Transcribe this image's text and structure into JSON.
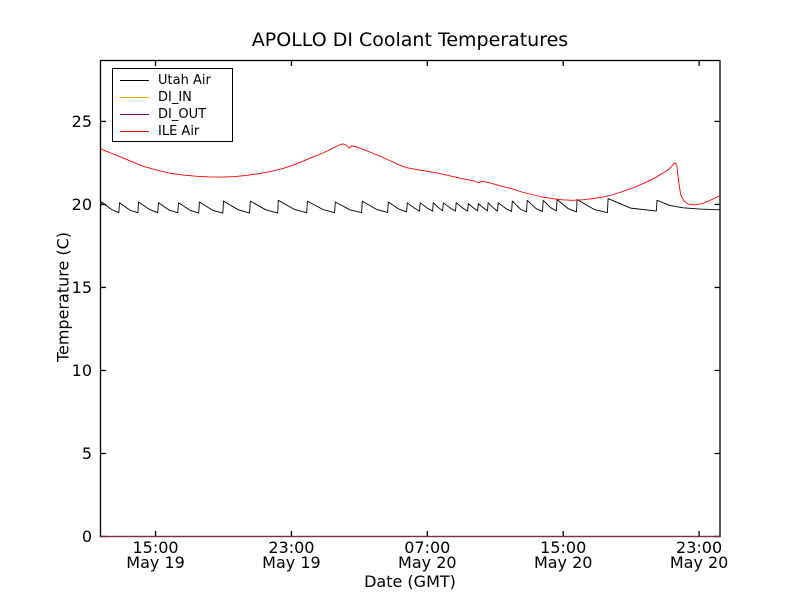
{
  "figure": {
    "background": "#ffffff",
    "frame_color": "#000000"
  },
  "chart_data": {
    "type": "line",
    "title": "APOLLO DI Coolant Temperatures",
    "xlabel": "Date (GMT)",
    "ylabel": "Temperature (C)",
    "grid": false,
    "legend_position": "upper left",
    "x_unit": "hours along trace (labels show time/date GMT)",
    "xlim": [
      0,
      36.47
    ],
    "ylim": [
      0,
      28.67
    ],
    "yticks": [
      0,
      5,
      10,
      15,
      20,
      25
    ],
    "xticks": [
      {
        "hour": 3.24,
        "time": "15:00",
        "date": "May 19"
      },
      {
        "hour": 11.24,
        "time": "23:00",
        "date": "May 19"
      },
      {
        "hour": 19.24,
        "time": "07:00",
        "date": "May 20"
      },
      {
        "hour": 27.24,
        "time": "15:00",
        "date": "May 20"
      },
      {
        "hour": 35.24,
        "time": "23:00",
        "date": "May 20"
      }
    ],
    "series": [
      {
        "name": "Utah Air",
        "color": "#000000",
        "points": [
          [
            0,
            19.85
          ],
          [
            0.06,
            20.15
          ],
          [
            0.64,
            19.7
          ],
          [
            1.08,
            19.5
          ],
          [
            1.12,
            20.1
          ],
          [
            1.74,
            19.65
          ],
          [
            2.2,
            19.5
          ],
          [
            2.24,
            20.15
          ],
          [
            2.88,
            19.7
          ],
          [
            3.37,
            19.5
          ],
          [
            3.41,
            20.1
          ],
          [
            4.06,
            19.65
          ],
          [
            4.55,
            19.5
          ],
          [
            4.59,
            20.1
          ],
          [
            5.27,
            19.65
          ],
          [
            5.78,
            19.48
          ],
          [
            5.82,
            20.15
          ],
          [
            6.6,
            19.65
          ],
          [
            7.2,
            19.48
          ],
          [
            7.24,
            20.2
          ],
          [
            8.11,
            19.68
          ],
          [
            8.78,
            19.48
          ],
          [
            8.82,
            20.2
          ],
          [
            9.73,
            19.68
          ],
          [
            10.43,
            19.48
          ],
          [
            10.47,
            20.25
          ],
          [
            11.41,
            19.7
          ],
          [
            12.14,
            19.5
          ],
          [
            12.18,
            20.2
          ],
          [
            13.08,
            19.7
          ],
          [
            13.78,
            19.5
          ],
          [
            13.82,
            20.15
          ],
          [
            14.69,
            19.68
          ],
          [
            15.37,
            19.5
          ],
          [
            15.41,
            20.2
          ],
          [
            16.25,
            19.7
          ],
          [
            16.9,
            19.52
          ],
          [
            16.94,
            20.15
          ],
          [
            17.56,
            19.72
          ],
          [
            18.02,
            19.55
          ],
          [
            18.06,
            20.1
          ],
          [
            18.48,
            19.78
          ],
          [
            18.78,
            19.6
          ],
          [
            18.82,
            20.1
          ],
          [
            19.24,
            19.78
          ],
          [
            19.55,
            19.6
          ],
          [
            19.59,
            20.1
          ],
          [
            19.91,
            19.8
          ],
          [
            20.14,
            19.62
          ],
          [
            20.18,
            20.1
          ],
          [
            20.6,
            19.78
          ],
          [
            20.9,
            19.6
          ],
          [
            20.94,
            20.1
          ],
          [
            21.33,
            19.78
          ],
          [
            21.61,
            19.6
          ],
          [
            21.65,
            20.05
          ],
          [
            21.97,
            19.78
          ],
          [
            22.2,
            19.62
          ],
          [
            22.24,
            20.05
          ],
          [
            22.56,
            19.78
          ],
          [
            22.78,
            19.62
          ],
          [
            22.82,
            20.1
          ],
          [
            23.14,
            19.78
          ],
          [
            23.37,
            19.6
          ],
          [
            23.41,
            20.1
          ],
          [
            23.87,
            19.75
          ],
          [
            24.2,
            19.58
          ],
          [
            24.24,
            20.2
          ],
          [
            24.72,
            19.72
          ],
          [
            25.08,
            19.55
          ],
          [
            25.12,
            20.25
          ],
          [
            25.64,
            19.75
          ],
          [
            26.02,
            19.58
          ],
          [
            26.06,
            20.25
          ],
          [
            26.51,
            19.8
          ],
          [
            26.84,
            19.62
          ],
          [
            26.88,
            20.3
          ],
          [
            27.53,
            19.75
          ],
          [
            28.02,
            19.55
          ],
          [
            28.06,
            20.3
          ],
          [
            29.06,
            19.7
          ],
          [
            29.84,
            19.5
          ],
          [
            29.88,
            20.35
          ],
          [
            31.2,
            19.78
          ],
          [
            32.72,
            19.6
          ],
          [
            32.76,
            20.25
          ],
          [
            33.5,
            19.95
          ],
          [
            34.3,
            19.8
          ],
          [
            35.3,
            19.72
          ],
          [
            36.47,
            19.68
          ]
        ]
      },
      {
        "name": "DI_IN",
        "color": "#ffa500",
        "points": [
          [
            0,
            0
          ],
          [
            36.47,
            0
          ]
        ]
      },
      {
        "name": "DI_OUT",
        "color": "#800080",
        "points": [
          [
            0,
            0
          ],
          [
            36.47,
            0
          ]
        ]
      },
      {
        "name": "ILE Air",
        "color": "#ff0000",
        "points": [
          [
            0,
            23.35
          ],
          [
            0.6,
            23.1
          ],
          [
            1.2,
            22.85
          ],
          [
            1.8,
            22.6
          ],
          [
            2.5,
            22.3
          ],
          [
            3.2,
            22.1
          ],
          [
            4.0,
            21.9
          ],
          [
            4.8,
            21.78
          ],
          [
            5.6,
            21.7
          ],
          [
            6.4,
            21.66
          ],
          [
            7.2,
            21.65
          ],
          [
            7.9,
            21.68
          ],
          [
            8.6,
            21.75
          ],
          [
            9.3,
            21.85
          ],
          [
            10.0,
            21.98
          ],
          [
            10.7,
            22.15
          ],
          [
            11.3,
            22.35
          ],
          [
            11.9,
            22.6
          ],
          [
            12.5,
            22.85
          ],
          [
            13.1,
            23.1
          ],
          [
            13.6,
            23.35
          ],
          [
            14.0,
            23.55
          ],
          [
            14.25,
            23.65
          ],
          [
            14.45,
            23.58
          ],
          [
            14.62,
            23.4
          ],
          [
            14.8,
            23.53
          ],
          [
            15.1,
            23.46
          ],
          [
            15.5,
            23.3
          ],
          [
            16.0,
            23.1
          ],
          [
            16.5,
            22.88
          ],
          [
            17.0,
            22.65
          ],
          [
            17.5,
            22.42
          ],
          [
            18.0,
            22.22
          ],
          [
            18.6,
            22.1
          ],
          [
            19.2,
            22.0
          ],
          [
            19.9,
            21.88
          ],
          [
            20.6,
            21.72
          ],
          [
            21.3,
            21.55
          ],
          [
            22.0,
            21.42
          ],
          [
            22.25,
            21.3
          ],
          [
            22.45,
            21.4
          ],
          [
            23.0,
            21.28
          ],
          [
            23.6,
            21.1
          ],
          [
            24.2,
            20.95
          ],
          [
            24.8,
            20.75
          ],
          [
            25.4,
            20.6
          ],
          [
            26.0,
            20.45
          ],
          [
            26.6,
            20.35
          ],
          [
            27.2,
            20.28
          ],
          [
            27.8,
            20.25
          ],
          [
            28.4,
            20.28
          ],
          [
            29.0,
            20.35
          ],
          [
            29.6,
            20.45
          ],
          [
            30.2,
            20.6
          ],
          [
            30.8,
            20.8
          ],
          [
            31.4,
            21.02
          ],
          [
            32.0,
            21.28
          ],
          [
            32.6,
            21.58
          ],
          [
            33.1,
            21.88
          ],
          [
            33.5,
            22.15
          ],
          [
            33.8,
            22.5
          ],
          [
            33.92,
            22.42
          ],
          [
            34.02,
            21.5
          ],
          [
            34.15,
            20.6
          ],
          [
            34.35,
            20.2
          ],
          [
            34.6,
            20.02
          ],
          [
            34.9,
            19.97
          ],
          [
            35.2,
            20.0
          ],
          [
            35.5,
            20.08
          ],
          [
            35.8,
            20.2
          ],
          [
            36.1,
            20.35
          ],
          [
            36.3,
            20.45
          ],
          [
            36.47,
            20.55
          ]
        ]
      }
    ]
  }
}
